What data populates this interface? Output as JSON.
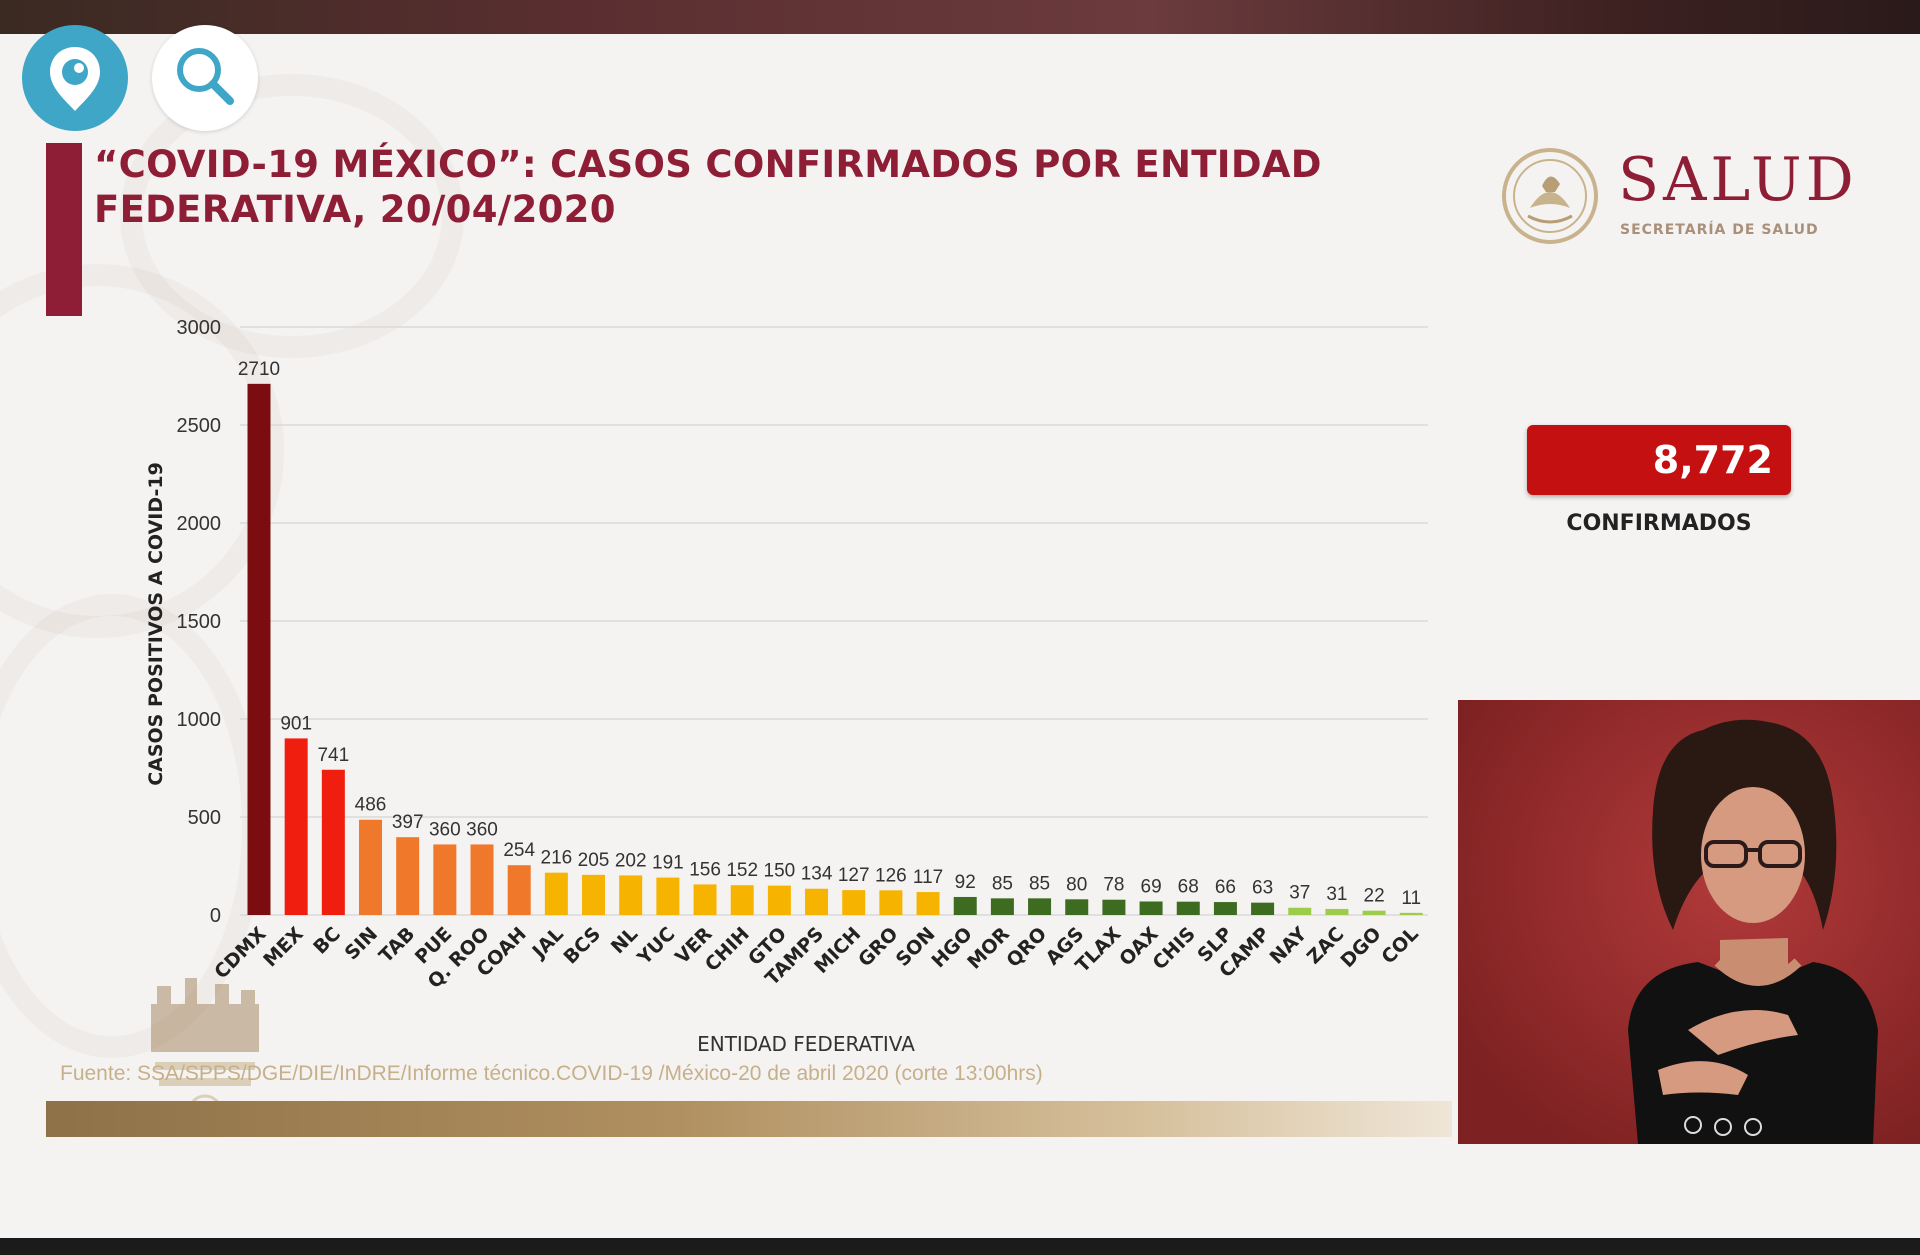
{
  "header": {
    "title": "“COVID-19 MÉXICO”: CASOS CONFIRMADOS POR ENTIDAD FEDERATIVA, 20/04/2020"
  },
  "logo": {
    "name": "SALUD",
    "subtitle": "SECRETARÍA DE SALUD"
  },
  "summary": {
    "count": "8,772",
    "label": "CONFIRMADOS"
  },
  "source": "Fuente: SSA/SPPS/DGE/DIE/InDRE/Informe técnico.COVID-19 /México-20 de abril 2020 (corte 13:00hrs)",
  "controls": {
    "periscope_icon": "periscope-pin-icon",
    "search_icon": "search-icon"
  },
  "colors": {
    "title": "#8e1e35",
    "confirm_box": "#c41010",
    "darkred": "#7b0c10",
    "red": "#f01e0e",
    "orange": "#f0782a",
    "yellow": "#f6b400",
    "darkgreen": "#3d6b1f",
    "lightgreen": "#9ccc4a"
  },
  "chart_data": {
    "type": "bar",
    "xlabel": "ENTIDAD FEDERATIVA",
    "ylabel": "CASOS POSITIVOS A COVID-19",
    "ylim": [
      0,
      3000
    ],
    "yticks": [
      "0",
      "500",
      "1000",
      "1500",
      "2000",
      "2500",
      "3000"
    ],
    "grid": true,
    "categories": [
      "CDMX",
      "MEX",
      "BC",
      "SIN",
      "TAB",
      "PUE",
      "Q. ROO",
      "COAH",
      "JAL",
      "BCS",
      "NL",
      "YUC",
      "VER",
      "CHIH",
      "GTO",
      "TAMPS",
      "MICH",
      "GRO",
      "SON",
      "HGO",
      "MOR",
      "QRO",
      "AGS",
      "TLAX",
      "OAX",
      "CHIS",
      "SLP",
      "CAMP",
      "NAY",
      "ZAC",
      "DGO",
      "COL"
    ],
    "values": [
      2710,
      901,
      741,
      486,
      397,
      360,
      360,
      254,
      216,
      205,
      202,
      191,
      156,
      152,
      150,
      134,
      127,
      126,
      117,
      92,
      85,
      85,
      80,
      78,
      69,
      68,
      66,
      63,
      37,
      31,
      22,
      11
    ],
    "bar_colors": [
      "darkred",
      "red",
      "red",
      "orange",
      "orange",
      "orange",
      "orange",
      "orange",
      "yellow",
      "yellow",
      "yellow",
      "yellow",
      "yellow",
      "yellow",
      "yellow",
      "yellow",
      "yellow",
      "yellow",
      "yellow",
      "darkgreen",
      "darkgreen",
      "darkgreen",
      "darkgreen",
      "darkgreen",
      "darkgreen",
      "darkgreen",
      "darkgreen",
      "darkgreen",
      "lightgreen",
      "lightgreen",
      "lightgreen",
      "lightgreen"
    ]
  }
}
